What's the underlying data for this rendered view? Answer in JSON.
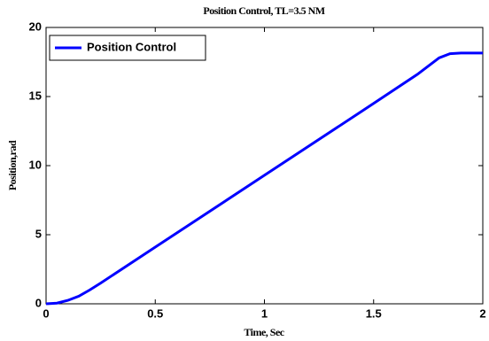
{
  "chart_data": {
    "type": "line",
    "title": "Position Control, TL=3.5 NM",
    "xlabel": "Time, Sec",
    "ylabel": "Position,rad",
    "x": [
      0,
      0.05,
      0.1,
      0.15,
      0.2,
      0.25,
      0.5,
      1,
      1.5,
      1.7,
      1.75,
      1.8,
      1.85,
      1.9,
      2
    ],
    "series": [
      {
        "name": "Position Control",
        "color": "#0000ff",
        "values": [
          0,
          0.05,
          0.25,
          0.55,
          1.0,
          1.5,
          4.1,
          9.3,
          14.5,
          16.6,
          17.2,
          17.8,
          18.1,
          18.15,
          18.15
        ]
      }
    ],
    "xlim": [
      0,
      2
    ],
    "xticks": [
      0,
      0.5,
      1,
      1.5,
      2
    ],
    "ylim": [
      0,
      20
    ],
    "yticks": [
      0,
      5,
      10,
      15,
      20
    ],
    "grid": false,
    "legend": "upper left"
  }
}
